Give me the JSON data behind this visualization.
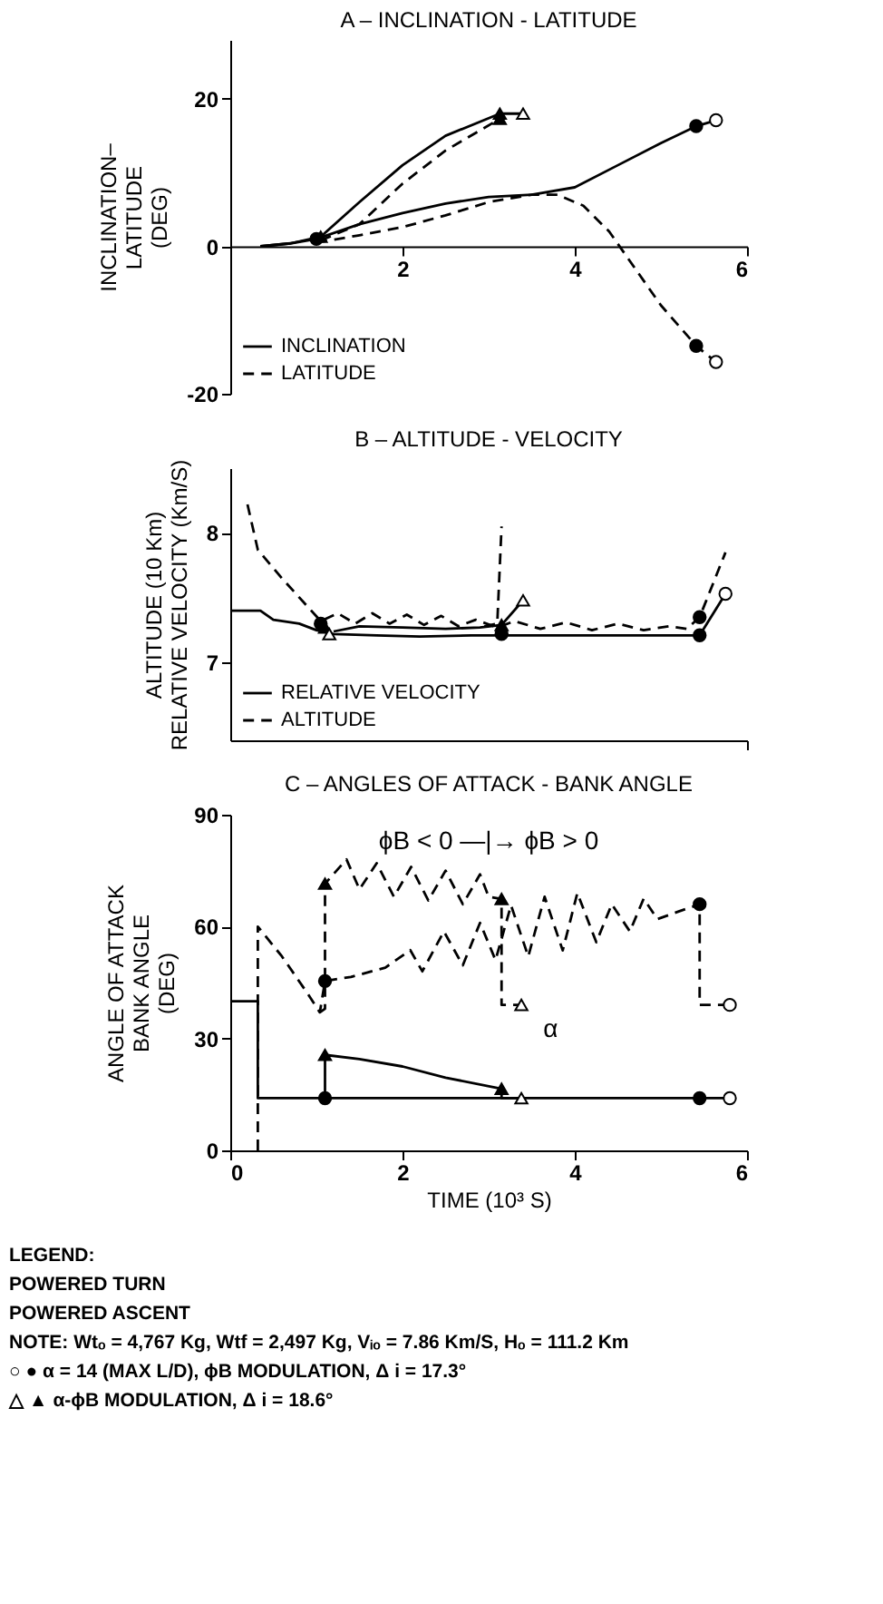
{
  "chart_data": [
    {
      "type": "line",
      "title": "A – INCLINATION - LATITUDE",
      "ylabel": "INCLINATION–\nLATITUDE\n(DEG)",
      "xlim": [
        0,
        6
      ],
      "xticks": [
        2,
        4,
        6
      ],
      "ylim": [
        -20,
        28
      ],
      "yticks": [
        -20,
        0,
        20
      ],
      "grid": false,
      "legend": "bottom left",
      "series": [
        {
          "name": "INCLINATION",
          "type": "line",
          "line_style": "solid",
          "color": "#000000",
          "x": [
            0.35,
            0.7,
            1.05,
            1.5,
            2.0,
            2.5,
            3.13,
            3.4
          ],
          "values": [
            0,
            0.4,
            1.3,
            6,
            11,
            15,
            18,
            18
          ]
        },
        {
          "name": "LATITUDE",
          "type": "line",
          "line_style": "dashed",
          "color": "#000000",
          "x": [
            1.05,
            1.5,
            2.0,
            2.5,
            3.13
          ],
          "values": [
            0.8,
            3,
            8.5,
            13,
            17.3
          ]
        },
        {
          "type": "line",
          "line_style": "solid",
          "color": "#000000",
          "x": [
            0.35,
            0.7,
            1.0,
            1.5,
            2.0,
            2.5,
            3.0,
            3.5,
            4.0,
            4.5,
            5.0,
            5.41,
            5.64
          ],
          "values": [
            0,
            0.4,
            1.0,
            3,
            4.5,
            5.8,
            6.7,
            7,
            8,
            11,
            14,
            16.3,
            17.1
          ]
        },
        {
          "type": "line",
          "line_style": "dashed",
          "color": "#000000",
          "x": [
            1.0,
            1.5,
            2.0,
            2.5,
            3.0,
            3.5,
            3.8,
            4.1,
            4.4,
            4.7,
            5.0,
            5.41,
            5.64
          ],
          "values": [
            0.5,
            1.5,
            2.6,
            4.2,
            6,
            7,
            7,
            5.5,
            2,
            -3,
            -8,
            -13.5,
            -15.7
          ]
        },
        {
          "type": "scatter",
          "marker": "circle",
          "color": "#000000",
          "x": [
            1.0,
            5.41,
            5.41
          ],
          "values": [
            1.0,
            16.3,
            -13.5
          ]
        },
        {
          "type": "scatter",
          "marker": "circle",
          "color": "#ffffff",
          "x": [
            5.64,
            5.64
          ],
          "values": [
            17.1,
            -15.7
          ]
        },
        {
          "type": "scatter",
          "marker": "triangle",
          "color": "#000000",
          "x": [
            1.05,
            3.13,
            3.13
          ],
          "values": [
            1.3,
            18,
            17.3
          ]
        },
        {
          "type": "scatter",
          "marker": "triangle",
          "color": "#ffffff",
          "x": [
            3.4
          ],
          "values": [
            18
          ]
        }
      ]
    },
    {
      "type": "line",
      "title": "B – ALTITUDE - VELOCITY",
      "ylabel": "ALTITUDE (10 Km)\nRELATIVE VELOCITY (Km/S)",
      "xlim": [
        0,
        6
      ],
      "xticks": [
        {
          "value": 6,
          "label": null
        }
      ],
      "ylim": [
        6.4,
        8.5
      ],
      "yticks": [
        7,
        8
      ],
      "grid": false,
      "legend": "bottom left",
      "tick_labels": "y",
      "series": [
        {
          "name": "RELATIVE VELOCITY",
          "type": "line",
          "line_style": "solid",
          "color": "#000000",
          "x": [
            0,
            0.35,
            0.5,
            0.8,
            1.0,
            1.2,
            1.7,
            2.2,
            2.8,
            3.2,
            4,
            5,
            5.45,
            5.75
          ],
          "values": [
            7.4,
            7.4,
            7.33,
            7.3,
            7.25,
            7.22,
            7.21,
            7.2,
            7.21,
            7.21,
            7.21,
            7.21,
            7.21,
            7.53
          ]
        },
        {
          "type": "line",
          "line_style": "solid",
          "color": "#000000",
          "x": [
            1.2,
            1.5,
            2.0,
            2.5,
            2.9,
            3.15,
            3.4
          ],
          "values": [
            7.24,
            7.28,
            7.27,
            7.26,
            7.27,
            7.29,
            7.48
          ]
        },
        {
          "name": "ALTITUDE",
          "type": "line",
          "line_style": "dashed",
          "color": "#000000",
          "x": [
            0.2,
            0.32,
            0.6,
            1.05,
            1.25,
            1.45,
            1.65,
            1.85,
            2.05,
            2.25,
            2.45,
            2.65,
            2.85,
            3.1,
            3.3,
            3.6,
            3.9,
            4.2,
            4.5,
            4.8,
            5.1,
            5.3,
            5.45,
            5.75
          ],
          "values": [
            8.22,
            7.87,
            7.65,
            7.32,
            7.38,
            7.3,
            7.38,
            7.3,
            7.37,
            7.29,
            7.36,
            7.28,
            7.33,
            7.27,
            7.32,
            7.26,
            7.31,
            7.25,
            7.3,
            7.25,
            7.28,
            7.26,
            7.35,
            7.85
          ]
        },
        {
          "type": "line",
          "line_style": "dashed",
          "color": "#000000",
          "x": [
            2.95,
            3.1,
            3.15
          ],
          "values": [
            7.28,
            7.3,
            8.05
          ]
        },
        {
          "type": "scatter",
          "marker": "circle",
          "color": "#000000",
          "x": [
            1.05,
            3.15,
            5.45,
            5.45
          ],
          "values": [
            7.3,
            7.22,
            7.21,
            7.35
          ]
        },
        {
          "type": "scatter",
          "marker": "circle",
          "color": "#ffffff",
          "x": [
            5.75
          ],
          "values": [
            7.53
          ]
        },
        {
          "type": "scatter",
          "marker": "triangle",
          "color": "#000000",
          "x": [
            1.1,
            3.15
          ],
          "values": [
            7.27,
            7.29
          ]
        },
        {
          "type": "scatter",
          "marker": "triangle",
          "color": "#ffffff",
          "x": [
            1.15,
            3.4
          ],
          "values": [
            7.22,
            7.48
          ]
        }
      ]
    },
    {
      "type": "line",
      "title": "C – ANGLES OF ATTACK - BANK ANGLE",
      "xlabel": "TIME (10³ S)",
      "ylabel": "ANGLE OF ATTACK\nBANK ANGLE\n(DEG)",
      "xlim": [
        0,
        6
      ],
      "xticks": [
        0,
        2,
        4,
        6
      ],
      "ylim": [
        0,
        90
      ],
      "yticks": [
        0,
        30,
        60,
        90
      ],
      "grid": false,
      "series": [
        {
          "type": "line",
          "line_style": "solid",
          "color": "#000000",
          "x": [
            0,
            0.32,
            0.32,
            1.1,
            5.45,
            5.8
          ],
          "values": [
            40,
            40,
            14,
            14,
            14,
            14
          ]
        },
        {
          "type": "line",
          "line_style": "solid",
          "color": "#000000",
          "x": [
            1.1,
            1.1,
            1.5,
            2.0,
            2.5,
            3.15,
            3.15,
            3.38
          ],
          "values": [
            14,
            25.6,
            24.5,
            22.5,
            19.5,
            16.5,
            14,
            14
          ]
        },
        {
          "type": "line",
          "line_style": "dashed",
          "color": "#000000",
          "x": [
            0.32,
            0.32,
            0.6,
            0.9,
            1.04,
            1.1,
            1.4,
            1.8,
            2.09,
            2.23,
            2.48,
            2.7,
            2.9,
            3.08,
            3.26,
            3.46,
            3.65,
            3.86,
            4.03,
            4.25,
            4.43,
            4.64,
            4.8,
            4.96,
            5.2,
            5.45,
            5.45,
            5.8
          ],
          "values": [
            0,
            60,
            52,
            42,
            37,
            45.4,
            46.5,
            49,
            53.7,
            48,
            58.7,
            49.6,
            61,
            51,
            65.7,
            52,
            68,
            53.6,
            69,
            55.8,
            66,
            58.7,
            67.5,
            62,
            64,
            66,
            39,
            39
          ]
        },
        {
          "type": "line",
          "line_style": "dashed",
          "color": "#000000",
          "x": [
            1.04,
            1.1,
            1.1,
            1.35,
            1.5,
            1.7,
            1.9,
            2.1,
            2.3,
            2.5,
            2.7,
            2.9,
            3.0,
            3.15,
            3.15,
            3.38
          ],
          "values": [
            37,
            38,
            71.5,
            78,
            70,
            77,
            68,
            76,
            67,
            75,
            66,
            74,
            68,
            67.4,
            39,
            39
          ]
        },
        {
          "type": "scatter",
          "marker": "circle",
          "color": "#000000",
          "x": [
            1.1,
            1.1,
            5.45,
            5.45
          ],
          "values": [
            45.4,
            14,
            66,
            14
          ]
        },
        {
          "type": "scatter",
          "marker": "circle",
          "color": "#ffffff",
          "x": [
            5.8,
            5.8
          ],
          "values": [
            39,
            14
          ]
        },
        {
          "type": "scatter",
          "marker": "triangle",
          "color": "#000000",
          "x": [
            1.1,
            1.1,
            3.15,
            3.15
          ],
          "values": [
            71.5,
            25.6,
            67.4,
            16.5
          ]
        },
        {
          "type": "scatter",
          "marker": "triangle",
          "color": "#ffffff",
          "x": [
            3.38,
            3.38
          ],
          "values": [
            39,
            14
          ]
        }
      ],
      "annotations": [
        "α",
        "ϕB < 0 —|→ ϕB > 0",
        "LEGEND:",
        "POWERED TURN",
        "POWERED ASCENT",
        "NOTE: Wtₒ = 4,767 Kg, Wtf = 2,497 Kg, Vᵢₒ = 7.86 Km/S, Hₒ = 111.2 Km",
        "○ ● α = 14 (MAX L/D), ϕB MODULATION, Δ i = 17.3°",
        "△ ▲ α-ϕB MODULATION, Δ i = 18.6°"
      ]
    }
  ]
}
